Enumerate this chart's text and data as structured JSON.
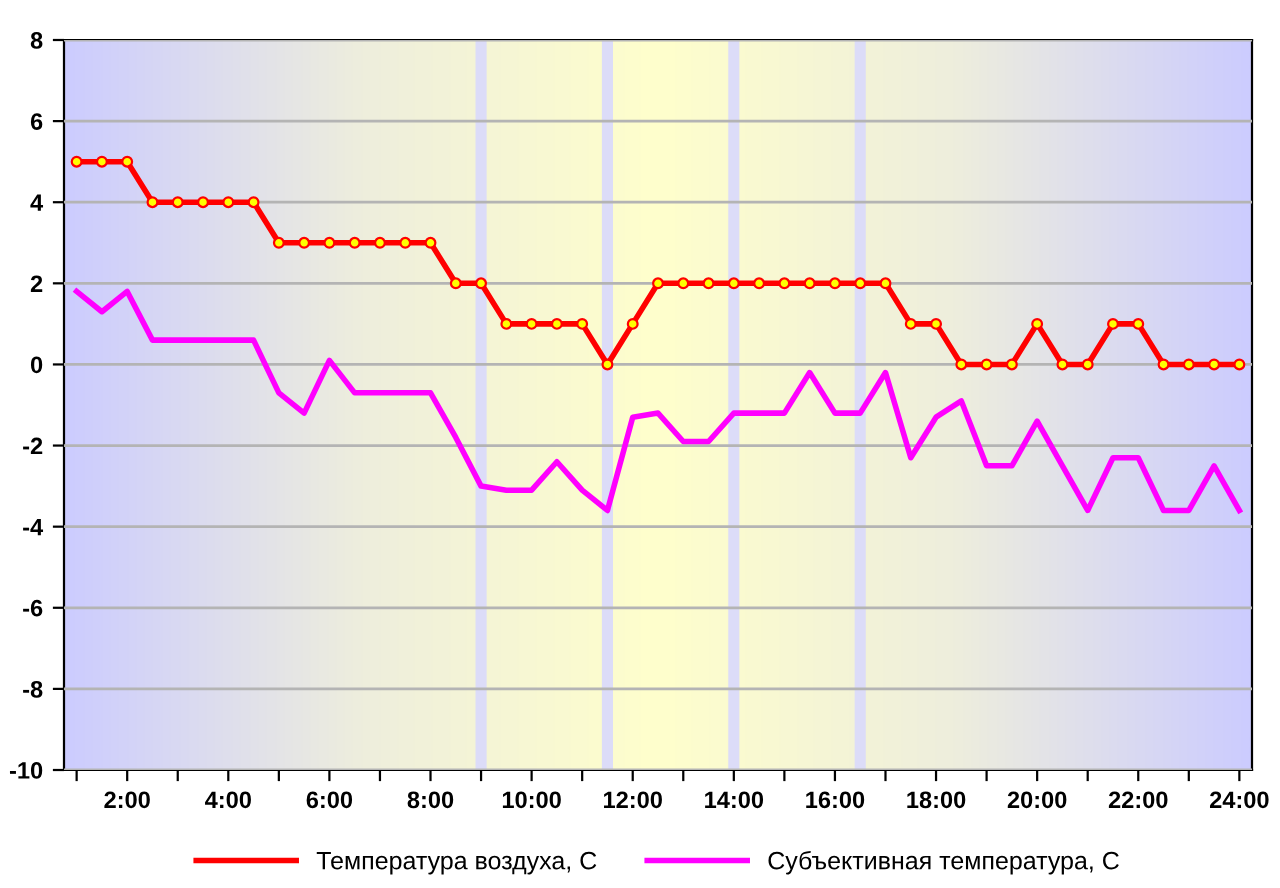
{
  "chart_data": {
    "type": "line",
    "x": [
      1,
      1.5,
      2,
      2.5,
      3,
      3.5,
      4,
      4.5,
      5,
      5.5,
      6,
      6.5,
      7,
      7.5,
      8,
      8.5,
      9,
      9.5,
      10,
      10.5,
      11,
      11.5,
      12,
      12.5,
      13,
      13.5,
      14,
      14.5,
      15,
      15.5,
      16,
      16.5,
      17,
      17.5,
      18,
      18.5,
      19,
      19.5,
      20,
      20.5,
      21,
      21.5,
      22,
      22.5,
      23,
      23.5,
      24
    ],
    "series": [
      {
        "name": "Температура воздуха, С",
        "color": "#ff0000",
        "marker": "circle",
        "values": [
          5,
          5,
          5,
          4,
          4,
          4,
          4,
          4,
          3,
          3,
          3,
          3,
          3,
          3,
          3,
          2,
          2,
          1,
          1,
          1,
          1,
          0,
          1,
          2,
          2,
          2,
          2,
          2,
          2,
          2,
          2,
          2,
          2,
          1,
          1,
          0,
          0,
          0,
          1,
          0,
          0,
          1,
          1,
          0,
          0,
          0,
          0
        ]
      },
      {
        "name": "Субъективная температура, С",
        "color": "#ff00ff",
        "marker": "none",
        "values": [
          1.8,
          1.3,
          1.8,
          0.6,
          0.6,
          0.6,
          0.6,
          0.6,
          -0.7,
          -1.2,
          0.1,
          -0.7,
          -0.7,
          -0.7,
          -0.7,
          -1.8,
          -3.0,
          -3.1,
          -3.1,
          -2.4,
          -3.1,
          -3.6,
          -1.3,
          -1.2,
          -1.9,
          -1.9,
          -1.2,
          -1.2,
          -1.2,
          -0.2,
          -1.2,
          -1.2,
          -0.2,
          -2.3,
          -1.3,
          -0.9,
          -2.5,
          -2.5,
          -1.4,
          -2.5,
          -3.6,
          -2.3,
          -2.3,
          -3.6,
          -3.6,
          -2.5,
          -3.6
        ]
      }
    ],
    "xlim": [
      0.75,
      24.25
    ],
    "xticks": [
      {
        "value": 1,
        "label": null
      },
      {
        "value": 2,
        "label": "2:00"
      },
      {
        "value": 3,
        "label": null
      },
      {
        "value": 4,
        "label": "4:00"
      },
      {
        "value": 5,
        "label": null
      },
      {
        "value": 6,
        "label": "6:00"
      },
      {
        "value": 7,
        "label": null
      },
      {
        "value": 8,
        "label": "8:00"
      },
      {
        "value": 9,
        "label": null
      },
      {
        "value": 10,
        "label": "10:00"
      },
      {
        "value": 11,
        "label": null
      },
      {
        "value": 12,
        "label": "12:00"
      },
      {
        "value": 13,
        "label": null
      },
      {
        "value": 14,
        "label": "14:00"
      },
      {
        "value": 15,
        "label": null
      },
      {
        "value": 16,
        "label": "16:00"
      },
      {
        "value": 17,
        "label": null
      },
      {
        "value": 18,
        "label": "18:00"
      },
      {
        "value": 19,
        "label": null
      },
      {
        "value": 20,
        "label": "20:00"
      },
      {
        "value": 21,
        "label": null
      },
      {
        "value": 22,
        "label": "22:00"
      },
      {
        "value": 23,
        "label": null
      },
      {
        "value": 24,
        "label": "24:00"
      }
    ],
    "ylim": [
      -10,
      8
    ],
    "yticks": [
      -10,
      -8,
      -6,
      -4,
      -2,
      0,
      2,
      4,
      6,
      8
    ],
    "ref_lines": [
      {
        "axis": "x",
        "value": 9,
        "color": "#dcdcf8"
      },
      {
        "axis": "x",
        "value": 11.5,
        "color": "#dcdcf8"
      },
      {
        "axis": "x",
        "value": 14,
        "color": "#dcdcf8"
      },
      {
        "axis": "x",
        "value": 16.5,
        "color": "#dcdcf8"
      }
    ],
    "grid": "y",
    "legend": "bottom"
  }
}
